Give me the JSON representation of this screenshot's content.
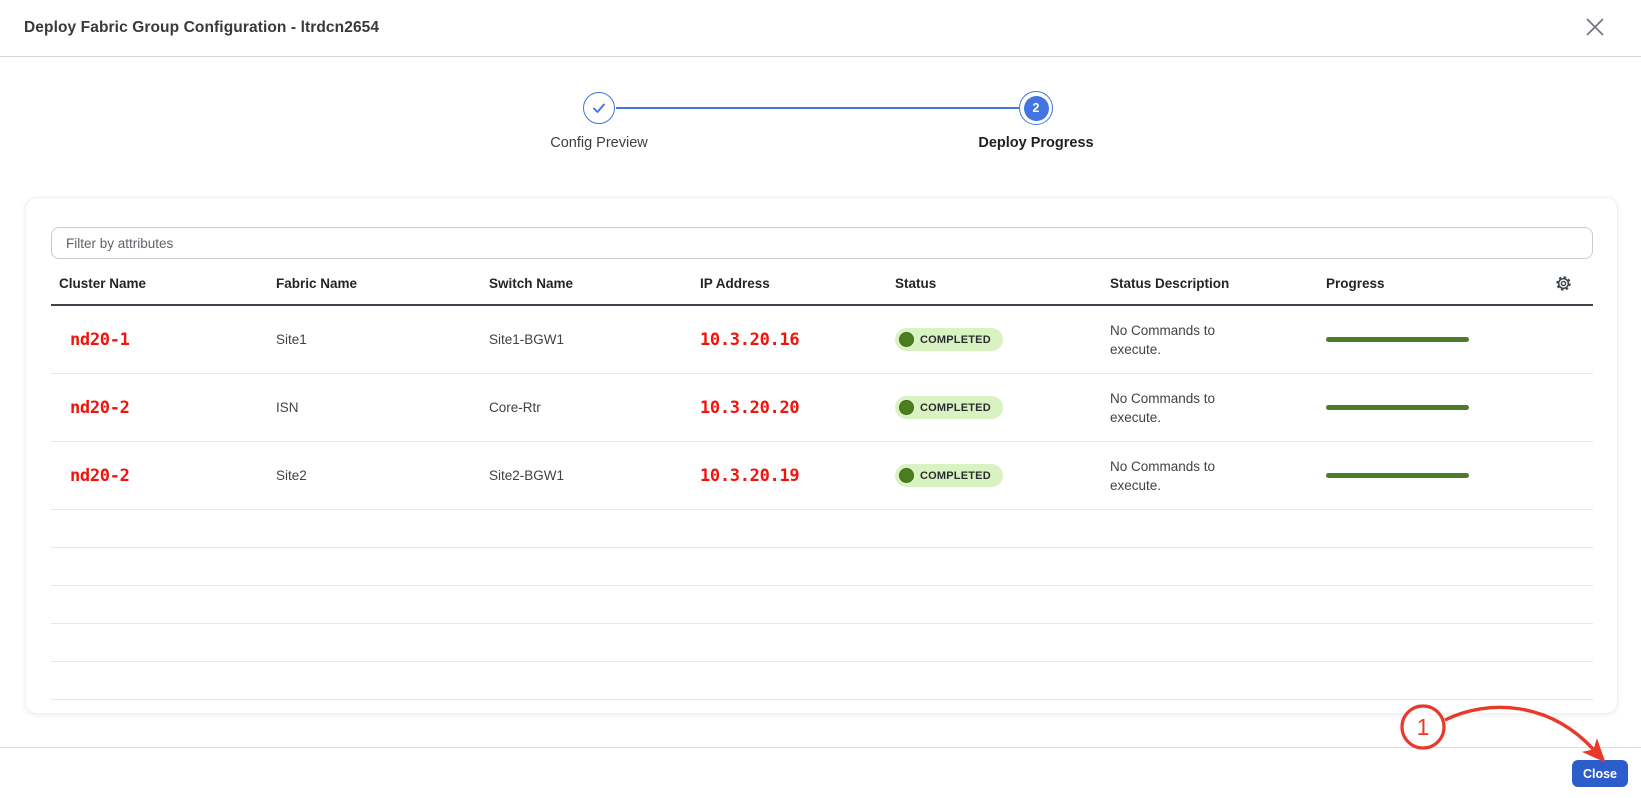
{
  "modal": {
    "title": "Deploy Fabric Group Configuration - ltrdcn2654"
  },
  "stepper": {
    "steps": [
      {
        "label": "Config Preview",
        "state": "completed"
      },
      {
        "label": "Deploy Progress",
        "state": "active",
        "number": "2"
      }
    ]
  },
  "filter": {
    "placeholder": "Filter by attributes"
  },
  "table": {
    "columns": [
      "Cluster Name",
      "Fabric Name",
      "Switch Name",
      "IP Address",
      "Status",
      "Status Description",
      "Progress"
    ],
    "rows": [
      {
        "cluster": "nd20-1",
        "fabric": "Site1",
        "switch": "Site1-BGW1",
        "ip": "10.3.20.16",
        "status": "COMPLETED",
        "description": "No Commands to execute.",
        "progress_pct": 100
      },
      {
        "cluster": "nd20-2",
        "fabric": "ISN",
        "switch": "Core-Rtr",
        "ip": "10.3.20.20",
        "status": "COMPLETED",
        "description": "No Commands to execute.",
        "progress_pct": 100
      },
      {
        "cluster": "nd20-2",
        "fabric": "Site2",
        "switch": "Site2-BGW1",
        "ip": "10.3.20.19",
        "status": "COMPLETED",
        "description": "No Commands to execute.",
        "progress_pct": 100
      }
    ],
    "empty_row_count": 5
  },
  "footer": {
    "close_label": "Close"
  },
  "annotation": {
    "label": "1"
  },
  "colors": {
    "accent_blue": "#4374e2",
    "mono_red": "#f6110a",
    "badge_bg": "#d9f2c2",
    "badge_dot": "#4c7e1f",
    "progress_green": "#4c7c27",
    "close_blue": "#2b5ecb",
    "annotation_red": "#e8392b"
  }
}
